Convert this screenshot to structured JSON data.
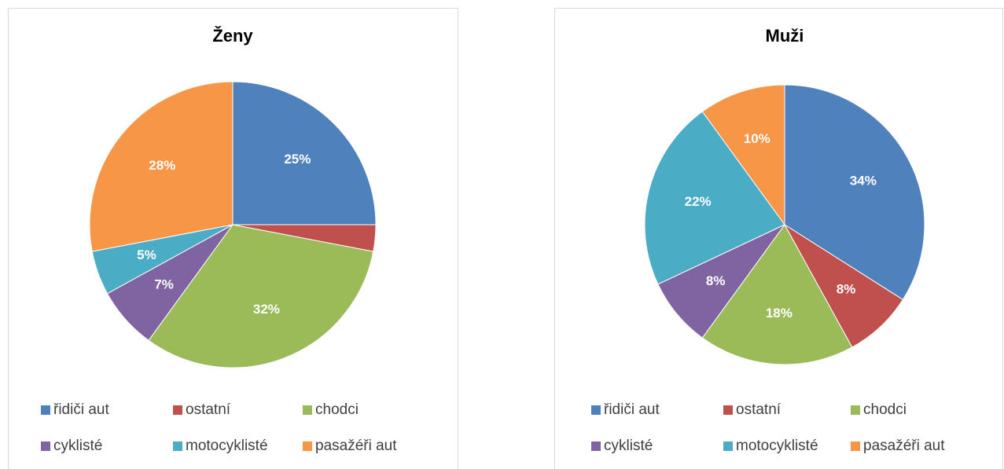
{
  "chart_data": [
    {
      "type": "pie",
      "title": "Ženy",
      "categories": [
        "řidiči aut",
        "ostatní",
        "chodci",
        "cyklisté",
        "motocyklisté",
        "pasažéři aut"
      ],
      "values": [
        25,
        3,
        32,
        7,
        5,
        28
      ],
      "value_labels": [
        "25%",
        "3%",
        "32%",
        "7%",
        "5%",
        "28%"
      ],
      "colors": [
        "#4f81bd",
        "#c0504d",
        "#9bbb59",
        "#8064a2",
        "#4bacc6",
        "#f79646"
      ],
      "legend": "bottom"
    },
    {
      "type": "pie",
      "title": "Muži",
      "categories": [
        "řidiči aut",
        "ostatní",
        "chodci",
        "cyklisté",
        "motocyklisté",
        "pasažéři aut"
      ],
      "values": [
        34,
        8,
        18,
        8,
        22,
        10
      ],
      "value_labels": [
        "34%",
        "8%",
        "18%",
        "8%",
        "22%",
        "10%"
      ],
      "colors": [
        "#4f81bd",
        "#c0504d",
        "#9bbb59",
        "#8064a2",
        "#4bacc6",
        "#f79646"
      ],
      "legend": "bottom"
    }
  ]
}
